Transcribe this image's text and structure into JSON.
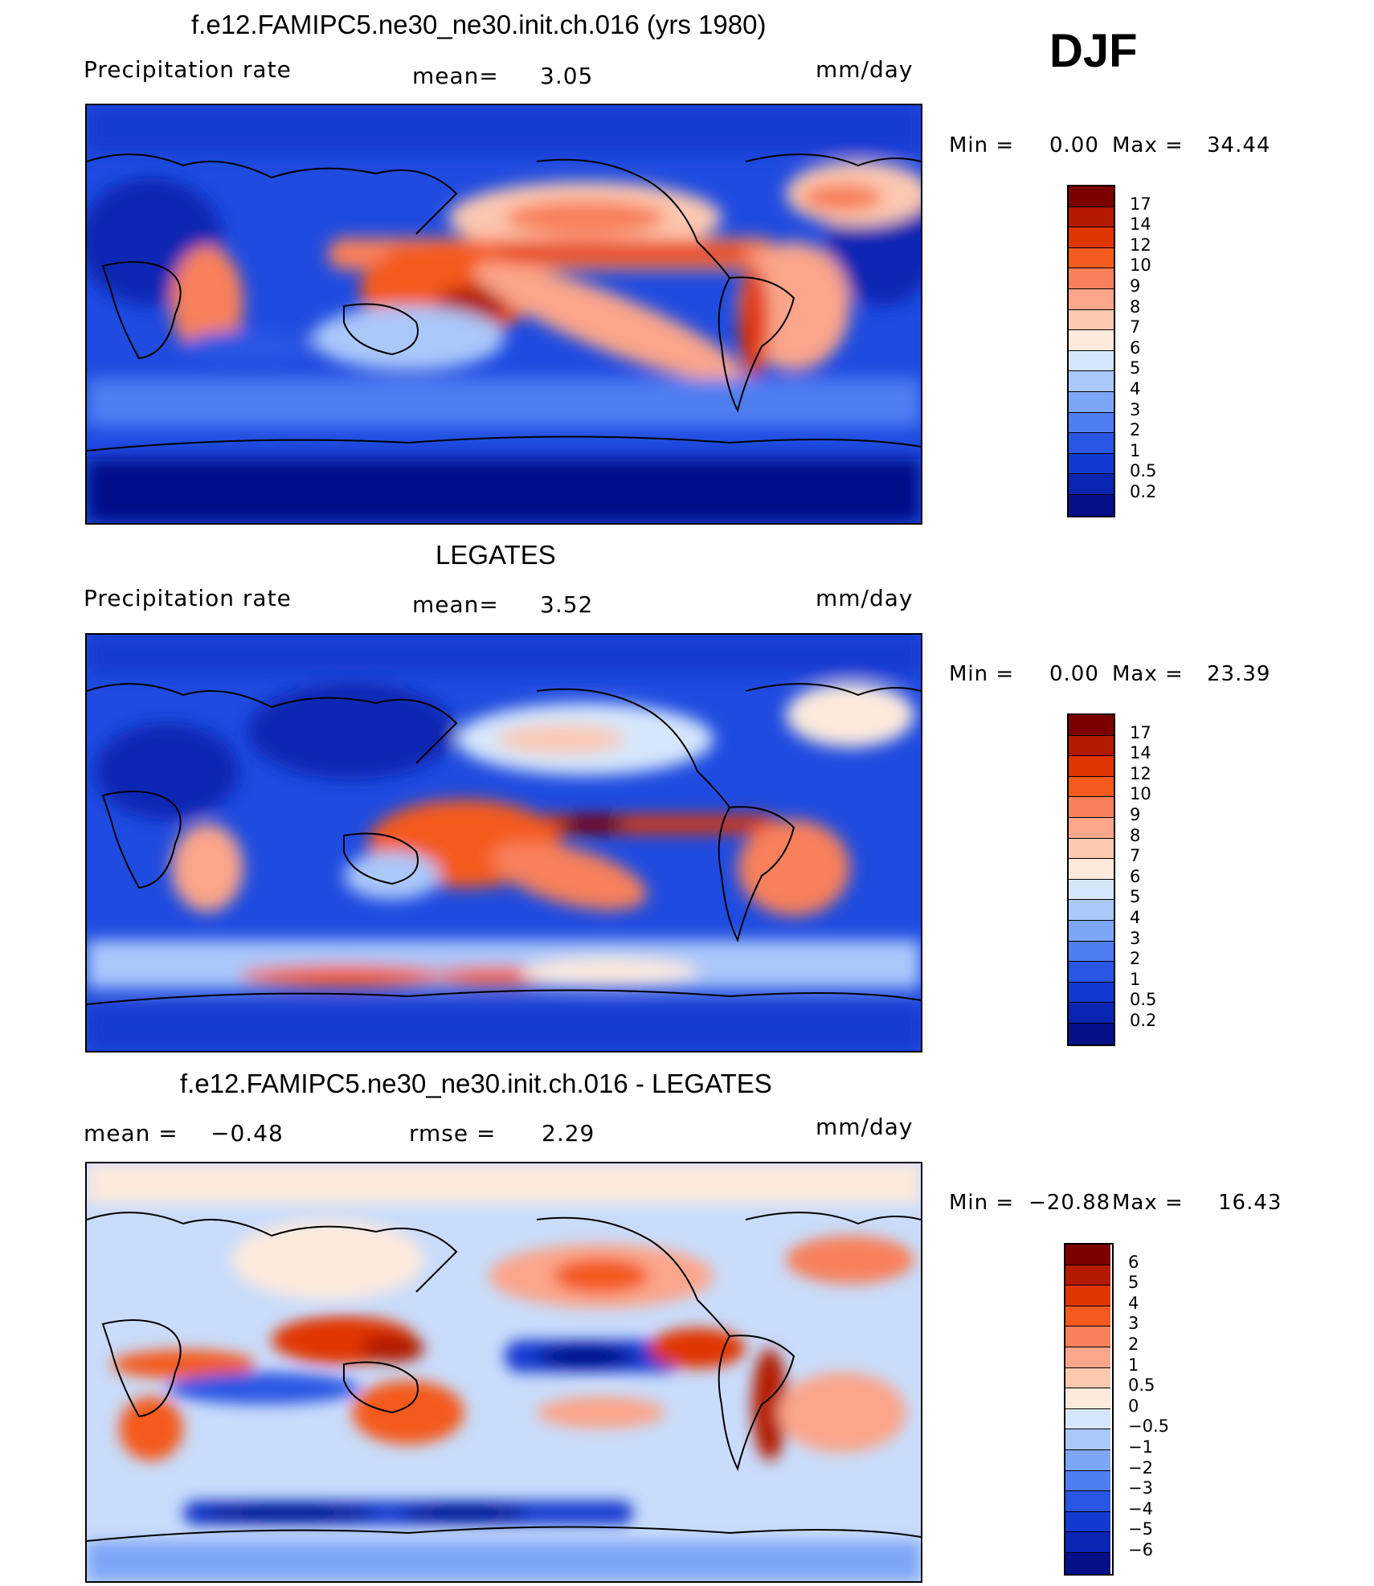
{
  "season": "DJF",
  "panels": [
    {
      "title": "f.e12.FAMIPC5.ne30_ne30.init.ch.016 (yrs 1980)",
      "left_label": "Precipitation  rate",
      "mid_label": "mean=",
      "mid_value": "3.05",
      "units": "mm/day",
      "min_label": "Min  =",
      "min_value": "0.00",
      "max_label": "Max  =",
      "max_value": "34.44",
      "levels": [
        "17",
        "14",
        "12",
        "10",
        "9",
        "8",
        "7",
        "6",
        "5",
        "4",
        "3",
        "2",
        "1",
        "0.5",
        "0.2"
      ]
    },
    {
      "title": "LEGATES",
      "left_label": "Precipitation  rate",
      "mid_label": "mean=",
      "mid_value": "3.52",
      "units": "mm/day",
      "min_label": "Min  =",
      "min_value": "0.00",
      "max_label": "Max  =",
      "max_value": "23.39",
      "levels": [
        "17",
        "14",
        "12",
        "10",
        "9",
        "8",
        "7",
        "6",
        "5",
        "4",
        "3",
        "2",
        "1",
        "0.5",
        "0.2"
      ]
    },
    {
      "title": "f.e12.FAMIPC5.ne30_ne30.init.ch.016 - LEGATES",
      "left_label": "mean  =",
      "left_value": "−0.48",
      "mid_label": "rmse  =",
      "mid_value": "2.29",
      "units": "mm/day",
      "min_label": "Min  =",
      "min_value": "−20.88",
      "max_label": "Max  =",
      "max_value": "16.43",
      "levels": [
        "6",
        "5",
        "4",
        "3",
        "2",
        "1",
        "0.5",
        "0",
        "−0.5",
        "−1",
        "−2",
        "−3",
        "−4",
        "−5",
        "−6"
      ]
    }
  ],
  "colors": {
    "precip_scale": [
      "#7b0000",
      "#b31a00",
      "#e13500",
      "#f45a1e",
      "#f8805a",
      "#fba58a",
      "#fcc8b0",
      "#fdeadd",
      "#d6e7fb",
      "#aac8fa",
      "#7ea6f7",
      "#4f7ef2",
      "#2a56e4",
      "#123ad0",
      "#0b25b3",
      "#050f88"
    ],
    "diff_scale": [
      "#7b0000",
      "#b31a00",
      "#e13500",
      "#f45a1e",
      "#f8805a",
      "#fba58a",
      "#fcc8b0",
      "#fdeadd",
      "#d6e7fb",
      "#aac8fa",
      "#7ea6f7",
      "#4f7ef2",
      "#2a56e4",
      "#123ad0",
      "#0b25b3",
      "#050f88"
    ]
  }
}
